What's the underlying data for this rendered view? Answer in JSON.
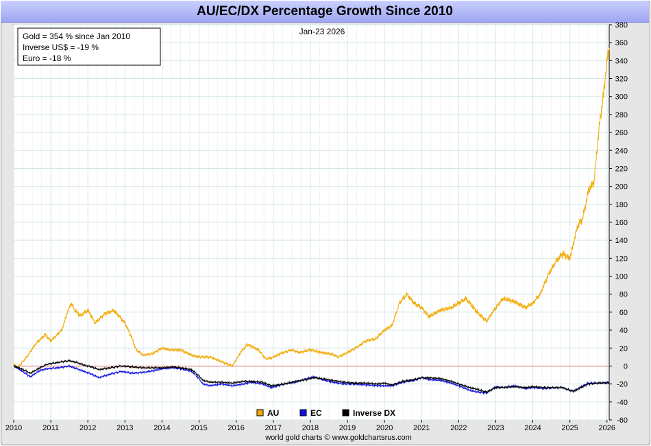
{
  "chart_data": {
    "type": "line",
    "title": "AU/EC/DX Percentage Growth Since 2010",
    "date_label": "Jan-23  2026",
    "info_box": [
      "Gold = 354 % since Jan 2010",
      "Inverse US$ = -19 %",
      "Euro = -18 %"
    ],
    "credit": "world gold charts © www.goldchartsrus.com",
    "xlim": [
      2010,
      2026.06
    ],
    "ylim": [
      -60,
      380
    ],
    "x_ticks": [
      2010,
      2011,
      2012,
      2013,
      2014,
      2015,
      2016,
      2017,
      2018,
      2019,
      2020,
      2021,
      2022,
      2023,
      2024,
      2025,
      2026
    ],
    "y_ticks": [
      -60,
      -40,
      -20,
      0,
      20,
      40,
      60,
      80,
      100,
      120,
      140,
      160,
      180,
      200,
      220,
      240,
      260,
      280,
      300,
      320,
      340,
      360,
      380
    ],
    "zero_line_color": "#e06060",
    "grid": true,
    "legend_position": "bottom-center",
    "series": [
      {
        "name": "AU",
        "color": "#f2a900",
        "x": [
          2010.0,
          2010.1,
          2010.35,
          2010.6,
          2010.85,
          2011.0,
          2011.3,
          2011.45,
          2011.55,
          2011.65,
          2011.8,
          2012.0,
          2012.2,
          2012.45,
          2012.7,
          2012.85,
          2013.0,
          2013.2,
          2013.3,
          2013.5,
          2013.75,
          2014.0,
          2014.2,
          2014.5,
          2014.8,
          2015.0,
          2015.3,
          2015.6,
          2015.9,
          2016.1,
          2016.3,
          2016.6,
          2016.8,
          2016.95,
          2017.2,
          2017.5,
          2017.7,
          2018.0,
          2018.3,
          2018.6,
          2018.75,
          2019.0,
          2019.3,
          2019.5,
          2019.75,
          2020.0,
          2020.2,
          2020.4,
          2020.6,
          2020.8,
          2021.0,
          2021.2,
          2021.5,
          2021.8,
          2022.0,
          2022.2,
          2022.5,
          2022.75,
          2023.0,
          2023.2,
          2023.5,
          2023.8,
          2024.0,
          2024.2,
          2024.4,
          2024.6,
          2024.8,
          2025.0,
          2025.2,
          2025.35,
          2025.5,
          2025.65,
          2025.8,
          2025.9,
          2026.0,
          2026.06
        ],
        "values": [
          2,
          -2,
          10,
          25,
          35,
          28,
          40,
          60,
          70,
          62,
          56,
          62,
          48,
          58,
          62,
          55,
          48,
          30,
          18,
          12,
          14,
          20,
          18,
          18,
          12,
          10,
          10,
          5,
          0,
          14,
          24,
          18,
          8,
          9,
          14,
          18,
          15,
          18,
          15,
          13,
          10,
          15,
          22,
          28,
          30,
          40,
          45,
          70,
          80,
          70,
          65,
          55,
          62,
          65,
          70,
          75,
          60,
          50,
          65,
          75,
          72,
          65,
          70,
          80,
          100,
          115,
          125,
          120,
          155,
          165,
          195,
          205,
          270,
          300,
          340,
          354
        ]
      },
      {
        "name": "EC",
        "color": "#1010e0",
        "x": [
          2010.0,
          2010.2,
          2010.45,
          2010.7,
          2010.9,
          2011.2,
          2011.5,
          2011.7,
          2011.9,
          2012.1,
          2012.3,
          2012.6,
          2012.9,
          2013.2,
          2013.5,
          2013.8,
          2014.0,
          2014.3,
          2014.5,
          2014.8,
          2015.0,
          2015.1,
          2015.3,
          2015.6,
          2015.9,
          2016.2,
          2016.4,
          2016.7,
          2016.95,
          2017.3,
          2017.6,
          2017.9,
          2018.1,
          2018.3,
          2018.6,
          2018.9,
          2019.2,
          2019.5,
          2019.8,
          2020.0,
          2020.2,
          2020.5,
          2020.8,
          2021.0,
          2021.2,
          2021.5,
          2021.8,
          2022.0,
          2022.3,
          2022.5,
          2022.75,
          2023.0,
          2023.2,
          2023.5,
          2023.8,
          2024.0,
          2024.3,
          2024.6,
          2024.8,
          2025.0,
          2025.1,
          2025.35,
          2025.5,
          2025.8,
          2026.06
        ],
        "values": [
          0,
          -5,
          -12,
          -5,
          -3,
          -2,
          0,
          -3,
          -6,
          -9,
          -13,
          -9,
          -6,
          -8,
          -7,
          -5,
          -3,
          -2,
          -3,
          -6,
          -14,
          -20,
          -22,
          -20,
          -22,
          -20,
          -18,
          -20,
          -24,
          -20,
          -18,
          -14,
          -12,
          -15,
          -18,
          -20,
          -20,
          -21,
          -22,
          -22,
          -22,
          -18,
          -16,
          -13,
          -15,
          -16,
          -19,
          -22,
          -27,
          -29,
          -30,
          -23,
          -24,
          -22,
          -25,
          -24,
          -25,
          -24,
          -24,
          -27,
          -28,
          -22,
          -19,
          -19,
          -18
        ]
      },
      {
        "name": "Inverse DX",
        "color": "#000000",
        "x": [
          2010.0,
          2010.2,
          2010.45,
          2010.7,
          2010.9,
          2011.2,
          2011.5,
          2011.7,
          2011.9,
          2012.1,
          2012.3,
          2012.6,
          2012.9,
          2013.2,
          2013.5,
          2013.8,
          2014.0,
          2014.3,
          2014.5,
          2014.8,
          2015.0,
          2015.1,
          2015.3,
          2015.6,
          2015.9,
          2016.2,
          2016.4,
          2016.7,
          2016.95,
          2017.3,
          2017.6,
          2017.9,
          2018.1,
          2018.3,
          2018.6,
          2018.9,
          2019.2,
          2019.5,
          2019.8,
          2020.0,
          2020.2,
          2020.5,
          2020.8,
          2021.0,
          2021.2,
          2021.5,
          2021.8,
          2022.0,
          2022.3,
          2022.5,
          2022.75,
          2023.0,
          2023.2,
          2023.5,
          2023.8,
          2024.0,
          2024.3,
          2024.6,
          2024.8,
          2025.0,
          2025.1,
          2025.35,
          2025.5,
          2025.8,
          2026.06
        ],
        "values": [
          0,
          -3,
          -8,
          -2,
          2,
          4,
          6,
          4,
          1,
          -1,
          -4,
          -2,
          0,
          -1,
          -2,
          -2,
          -2,
          -1,
          -2,
          -4,
          -11,
          -16,
          -18,
          -18,
          -19,
          -17,
          -17,
          -18,
          -22,
          -20,
          -17,
          -15,
          -13,
          -14,
          -16,
          -18,
          -19,
          -19,
          -20,
          -19,
          -21,
          -17,
          -15,
          -13,
          -13,
          -14,
          -17,
          -20,
          -24,
          -26,
          -29,
          -24,
          -24,
          -23,
          -24,
          -23,
          -24,
          -24,
          -24,
          -27,
          -28,
          -23,
          -20,
          -19,
          -19
        ]
      }
    ]
  }
}
